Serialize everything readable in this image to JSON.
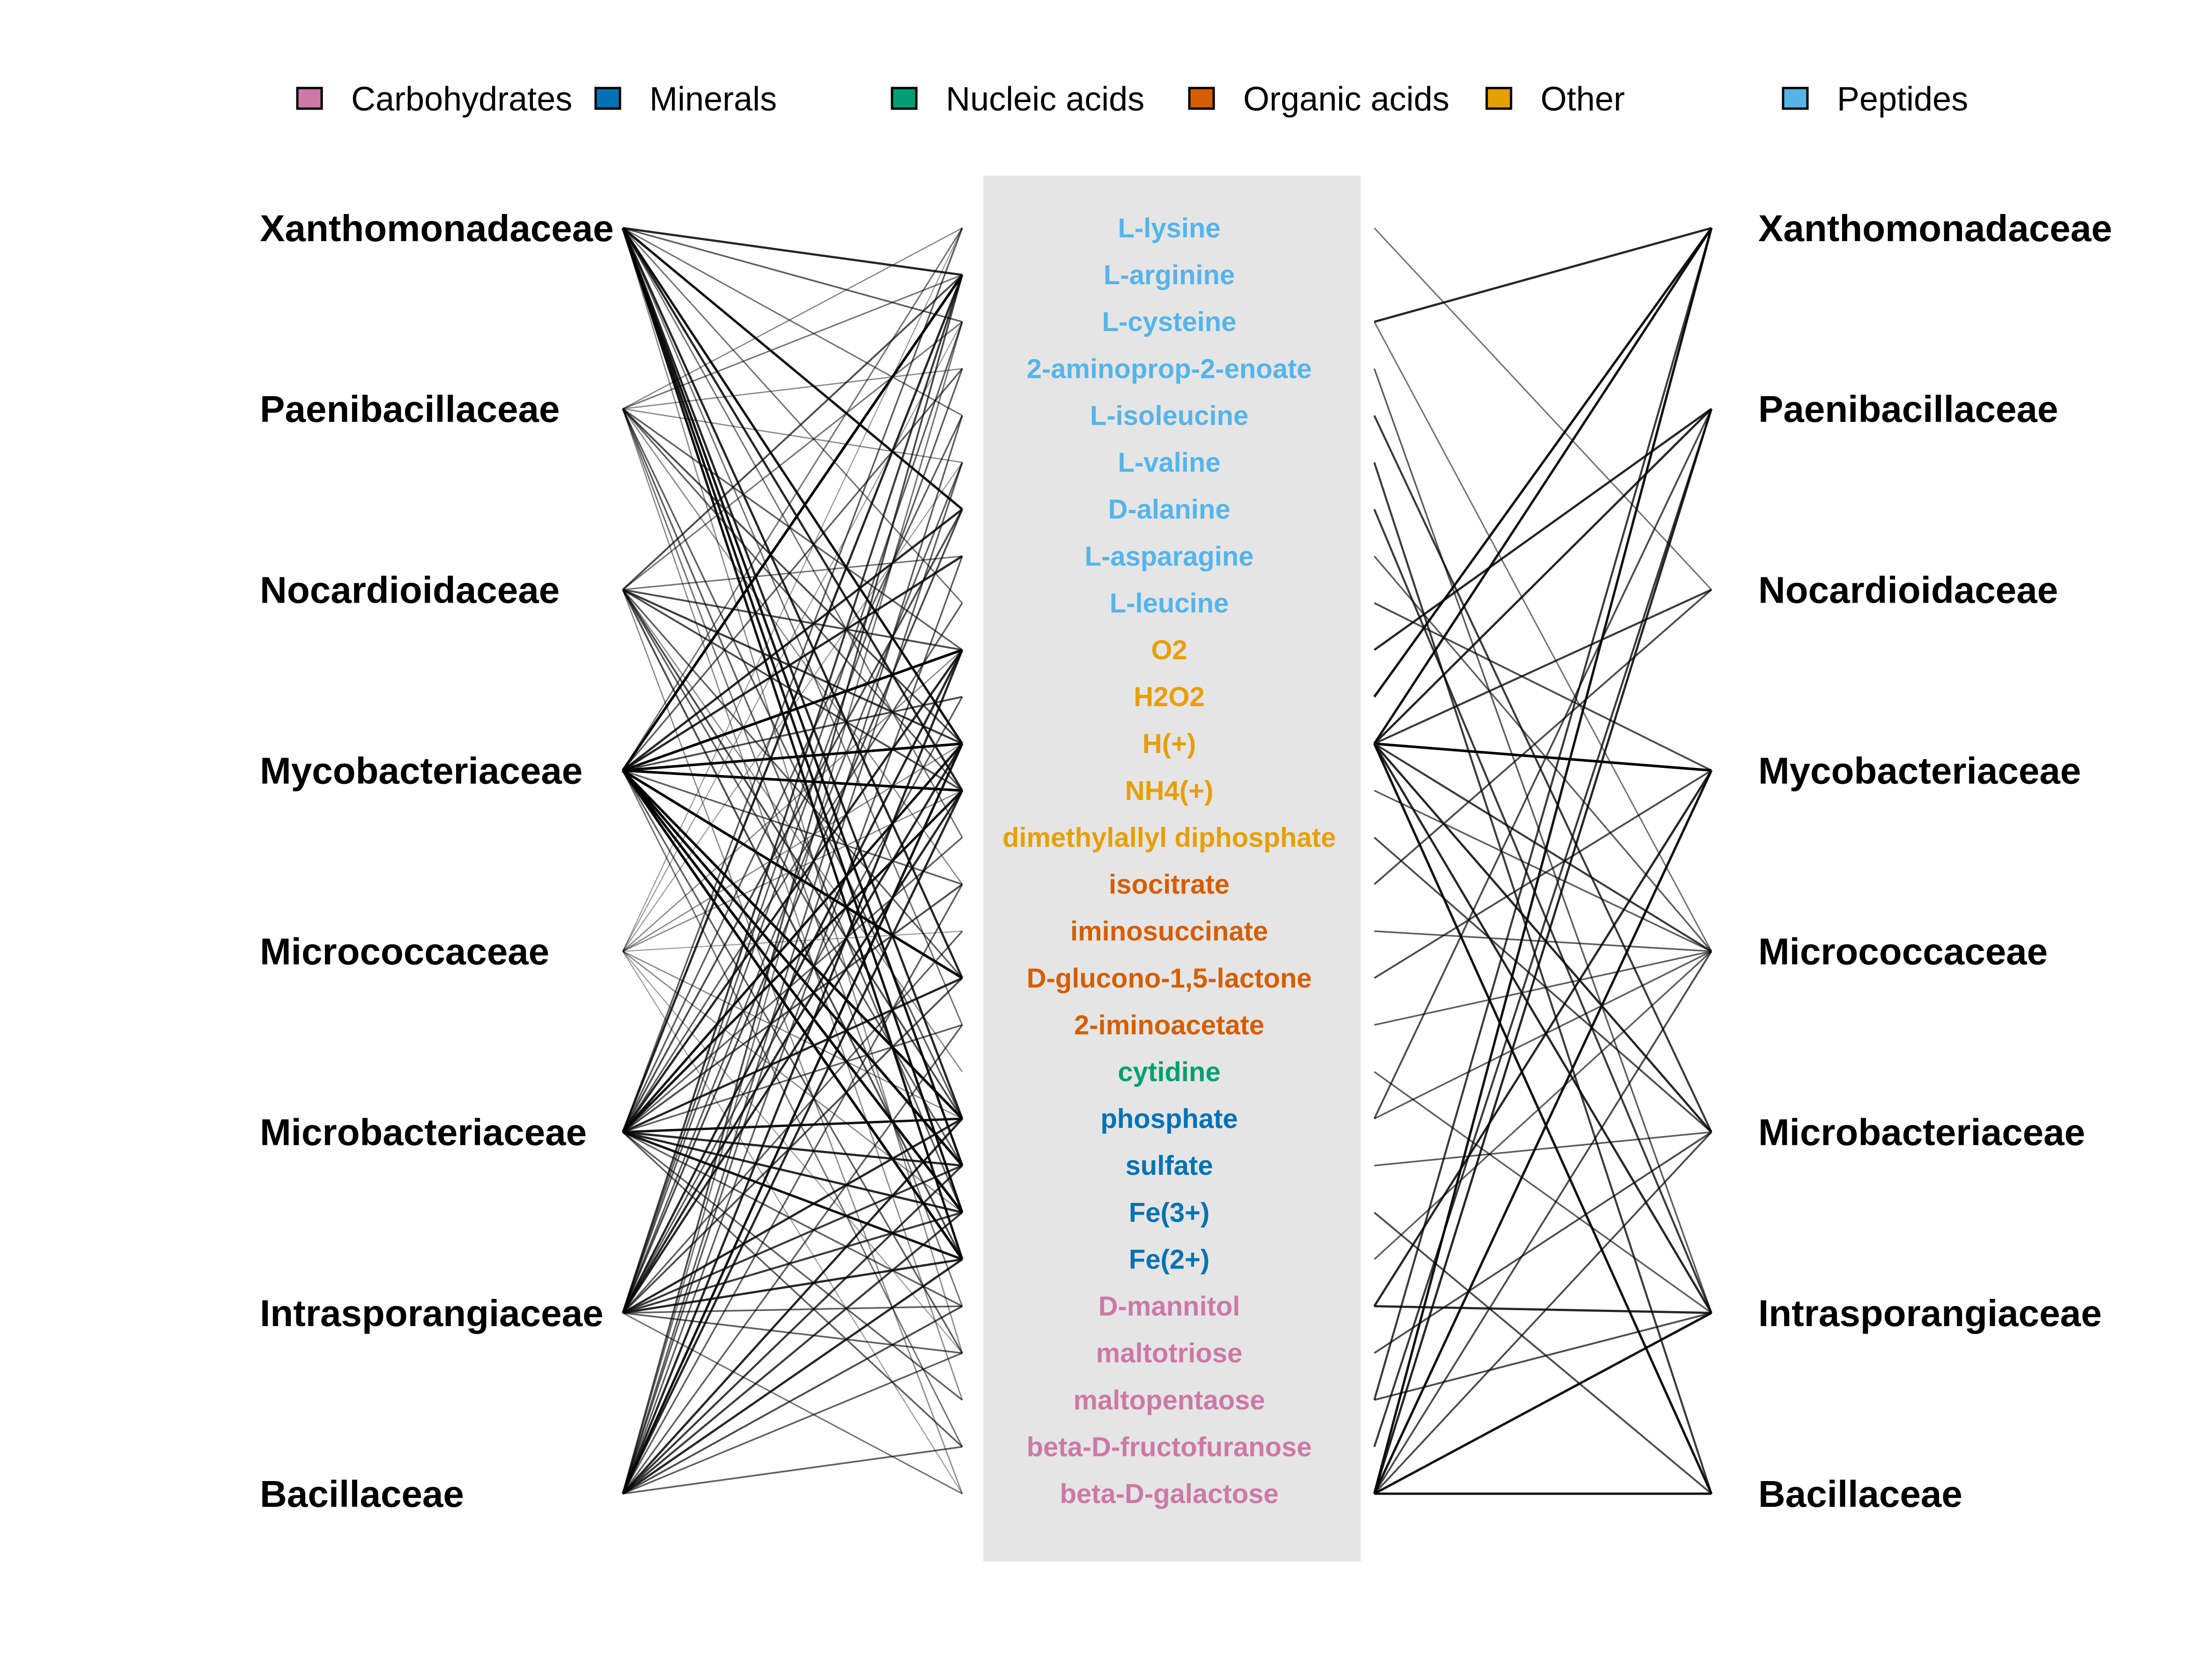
{
  "legend": {
    "items": [
      {
        "label": "Carbohydrates",
        "color": "#CC79A7"
      },
      {
        "label": "Minerals",
        "color": "#0072B2"
      },
      {
        "label": "Nucleic acids",
        "color": "#009E73"
      },
      {
        "label": "Organic acids",
        "color": "#D55E00"
      },
      {
        "label": "Other",
        "color": "#E69F00"
      },
      {
        "label": "Peptides",
        "color": "#56B4E9"
      }
    ]
  },
  "families": [
    "Xanthomonadaceae",
    "Paenibacillaceae",
    "Nocardioidaceae",
    "Mycobacteriaceae",
    "Micrococcaceae",
    "Microbacteriaceae",
    "Intrasporangiaceae",
    "Bacillaceae"
  ],
  "metabolites": [
    {
      "name": "L-lysine",
      "category": "Peptides"
    },
    {
      "name": "L-arginine",
      "category": "Peptides"
    },
    {
      "name": "L-cysteine",
      "category": "Peptides"
    },
    {
      "name": "2-aminoprop-2-enoate",
      "category": "Peptides"
    },
    {
      "name": "L-isoleucine",
      "category": "Peptides"
    },
    {
      "name": "L-valine",
      "category": "Peptides"
    },
    {
      "name": "D-alanine",
      "category": "Peptides"
    },
    {
      "name": "L-asparagine",
      "category": "Peptides"
    },
    {
      "name": "L-leucine",
      "category": "Peptides"
    },
    {
      "name": "O2",
      "category": "Other"
    },
    {
      "name": "H2O2",
      "category": "Other"
    },
    {
      "name": "H(+)",
      "category": "Other"
    },
    {
      "name": "NH4(+)",
      "category": "Other"
    },
    {
      "name": "dimethylallyl diphosphate",
      "category": "Other"
    },
    {
      "name": "isocitrate",
      "category": "Organic acids"
    },
    {
      "name": "iminosuccinate",
      "category": "Organic acids"
    },
    {
      "name": "D-glucono-1,5-lactone",
      "category": "Organic acids"
    },
    {
      "name": "2-iminoacetate",
      "category": "Organic acids"
    },
    {
      "name": "cytidine",
      "category": "Nucleic acids"
    },
    {
      "name": "phosphate",
      "category": "Minerals"
    },
    {
      "name": "sulfate",
      "category": "Minerals"
    },
    {
      "name": "Fe(3+)",
      "category": "Minerals"
    },
    {
      "name": "Fe(2+)",
      "category": "Minerals"
    },
    {
      "name": "D-mannitol",
      "category": "Carbohydrates"
    },
    {
      "name": "maltotriose",
      "category": "Carbohydrates"
    },
    {
      "name": "maltopentaose",
      "category": "Carbohydrates"
    },
    {
      "name": "beta-D-fructofuranose",
      "category": "Carbohydrates"
    },
    {
      "name": "beta-D-galactose",
      "category": "Carbohydrates"
    }
  ],
  "colors": {
    "center_panel": "#E5E5E5",
    "edge": "#000000"
  },
  "left_edges": [
    [
      "Xanthomonadaceae",
      "L-arginine",
      0.8
    ],
    [
      "Xanthomonadaceae",
      "L-cysteine",
      0.5
    ],
    [
      "Xanthomonadaceae",
      "L-isoleucine",
      0.4
    ],
    [
      "Xanthomonadaceae",
      "D-alanine",
      0.9
    ],
    [
      "Xanthomonadaceae",
      "L-leucine",
      0.4
    ],
    [
      "Xanthomonadaceae",
      "H(+)",
      0.9
    ],
    [
      "Xanthomonadaceae",
      "NH4(+)",
      0.8
    ],
    [
      "Xanthomonadaceae",
      "dimethylallyl diphosphate",
      0.4
    ],
    [
      "Xanthomonadaceae",
      "D-glucono-1,5-lactone",
      0.8
    ],
    [
      "Xanthomonadaceae",
      "2-iminoacetate",
      0.4
    ],
    [
      "Xanthomonadaceae",
      "phosphate",
      0.8
    ],
    [
      "Xanthomonadaceae",
      "sulfate",
      0.9
    ],
    [
      "Xanthomonadaceae",
      "Fe(3+)",
      0.9
    ],
    [
      "Xanthomonadaceae",
      "Fe(2+)",
      0.9
    ],
    [
      "Xanthomonadaceae",
      "maltotriose",
      0.3
    ],
    [
      "Paenibacillaceae",
      "L-lysine",
      0.3
    ],
    [
      "Paenibacillaceae",
      "L-arginine",
      0.4
    ],
    [
      "Paenibacillaceae",
      "2-aminoprop-2-enoate",
      0.3
    ],
    [
      "Paenibacillaceae",
      "L-valine",
      0.3
    ],
    [
      "Paenibacillaceae",
      "O2",
      0.5
    ],
    [
      "Paenibacillaceae",
      "H(+)",
      0.6
    ],
    [
      "Paenibacillaceae",
      "NH4(+)",
      0.5
    ],
    [
      "Paenibacillaceae",
      "isocitrate",
      0.3
    ],
    [
      "Paenibacillaceae",
      "phosphate",
      0.5
    ],
    [
      "Paenibacillaceae",
      "Fe(3+)",
      0.5
    ],
    [
      "Paenibacillaceae",
      "D-mannitol",
      0.4
    ],
    [
      "Paenibacillaceae",
      "maltopentaose",
      0.3
    ],
    [
      "Nocardioidaceae",
      "L-arginine",
      0.6
    ],
    [
      "Nocardioidaceae",
      "L-cysteine",
      0.4
    ],
    [
      "Nocardioidaceae",
      "L-asparagine",
      0.4
    ],
    [
      "Nocardioidaceae",
      "O2",
      0.6
    ],
    [
      "Nocardioidaceae",
      "H(+)",
      0.7
    ],
    [
      "Nocardioidaceae",
      "NH4(+)",
      0.6
    ],
    [
      "Nocardioidaceae",
      "D-glucono-1,5-lactone",
      0.5
    ],
    [
      "Nocardioidaceae",
      "cytidine",
      0.3
    ],
    [
      "Nocardioidaceae",
      "phosphate",
      0.6
    ],
    [
      "Nocardioidaceae",
      "sulfate",
      0.5
    ],
    [
      "Nocardioidaceae",
      "Fe(2+)",
      0.6
    ],
    [
      "Nocardioidaceae",
      "beta-D-galactose",
      0.3
    ],
    [
      "Mycobacteriaceae",
      "L-lysine",
      0.4
    ],
    [
      "Mycobacteriaceae",
      "L-arginine",
      1.0
    ],
    [
      "Mycobacteriaceae",
      "2-aminoprop-2-enoate",
      0.5
    ],
    [
      "Mycobacteriaceae",
      "D-alanine",
      0.8
    ],
    [
      "Mycobacteriaceae",
      "L-asparagine",
      0.8
    ],
    [
      "Mycobacteriaceae",
      "O2",
      1.0
    ],
    [
      "Mycobacteriaceae",
      "H2O2",
      0.6
    ],
    [
      "Mycobacteriaceae",
      "H(+)",
      1.0
    ],
    [
      "Mycobacteriaceae",
      "NH4(+)",
      1.0
    ],
    [
      "Mycobacteriaceae",
      "isocitrate",
      0.5
    ],
    [
      "Mycobacteriaceae",
      "D-glucono-1,5-lactone",
      1.0
    ],
    [
      "Mycobacteriaceae",
      "phosphate",
      1.0
    ],
    [
      "Mycobacteriaceae",
      "sulfate",
      1.0
    ],
    [
      "Mycobacteriaceae",
      "Fe(3+)",
      1.0
    ],
    [
      "Mycobacteriaceae",
      "Fe(2+)",
      1.0
    ],
    [
      "Mycobacteriaceae",
      "maltotriose",
      0.5
    ],
    [
      "Mycobacteriaceae",
      "beta-D-fructofuranose",
      0.4
    ],
    [
      "Micrococcaceae",
      "L-lysine",
      0.2
    ],
    [
      "Micrococcaceae",
      "L-cysteine",
      0.2
    ],
    [
      "Micrococcaceae",
      "L-valine",
      0.2
    ],
    [
      "Micrococcaceae",
      "O2",
      0.3
    ],
    [
      "Micrococcaceae",
      "H(+)",
      0.3
    ],
    [
      "Micrococcaceae",
      "NH4(+)",
      0.3
    ],
    [
      "Micrococcaceae",
      "iminosuccinate",
      0.2
    ],
    [
      "Micrococcaceae",
      "phosphate",
      0.3
    ],
    [
      "Micrococcaceae",
      "Fe(3+)",
      0.3
    ],
    [
      "Micrococcaceae",
      "maltotriose",
      0.2
    ],
    [
      "Micrococcaceae",
      "beta-D-galactose",
      0.2
    ],
    [
      "Microbacteriaceae",
      "L-lysine",
      0.5
    ],
    [
      "Microbacteriaceae",
      "L-arginine",
      0.8
    ],
    [
      "Microbacteriaceae",
      "L-isoleucine",
      0.5
    ],
    [
      "Microbacteriaceae",
      "D-alanine",
      0.6
    ],
    [
      "Microbacteriaceae",
      "L-leucine",
      0.5
    ],
    [
      "Microbacteriaceae",
      "O2",
      0.8
    ],
    [
      "Microbacteriaceae",
      "H(+)",
      0.9
    ],
    [
      "Microbacteriaceae",
      "NH4(+)",
      0.9
    ],
    [
      "Microbacteriaceae",
      "dimethylallyl diphosphate",
      0.5
    ],
    [
      "Microbacteriaceae",
      "isocitrate",
      0.6
    ],
    [
      "Microbacteriaceae",
      "D-glucono-1,5-lactone",
      0.8
    ],
    [
      "Microbacteriaceae",
      "2-iminoacetate",
      0.5
    ],
    [
      "Microbacteriaceae",
      "phosphate",
      0.9
    ],
    [
      "Microbacteriaceae",
      "sulfate",
      0.8
    ],
    [
      "Microbacteriaceae",
      "Fe(3+)",
      0.8
    ],
    [
      "Microbacteriaceae",
      "Fe(2+)",
      0.9
    ],
    [
      "Microbacteriaceae",
      "D-mannitol",
      0.5
    ],
    [
      "Microbacteriaceae",
      "maltopentaose",
      0.5
    ],
    [
      "Microbacteriaceae",
      "beta-D-fructofuranose",
      0.5
    ],
    [
      "Intrasporangiaceae",
      "L-arginine",
      0.7
    ],
    [
      "Intrasporangiaceae",
      "L-cysteine",
      0.5
    ],
    [
      "Intrasporangiaceae",
      "2-aminoprop-2-enoate",
      0.5
    ],
    [
      "Intrasporangiaceae",
      "L-valine",
      0.5
    ],
    [
      "Intrasporangiaceae",
      "D-alanine",
      0.6
    ],
    [
      "Intrasporangiaceae",
      "O2",
      0.8
    ],
    [
      "Intrasporangiaceae",
      "H2O2",
      0.5
    ],
    [
      "Intrasporangiaceae",
      "H(+)",
      0.8
    ],
    [
      "Intrasporangiaceae",
      "NH4(+)",
      0.8
    ],
    [
      "Intrasporangiaceae",
      "iminosuccinate",
      0.5
    ],
    [
      "Intrasporangiaceae",
      "D-glucono-1,5-lactone",
      0.6
    ],
    [
      "Intrasporangiaceae",
      "phosphate",
      0.8
    ],
    [
      "Intrasporangiaceae",
      "sulfate",
      0.7
    ],
    [
      "Intrasporangiaceae",
      "Fe(3+)",
      0.7
    ],
    [
      "Intrasporangiaceae",
      "Fe(2+)",
      0.8
    ],
    [
      "Intrasporangiaceae",
      "D-mannitol",
      0.5
    ],
    [
      "Intrasporangiaceae",
      "maltotriose",
      0.5
    ],
    [
      "Intrasporangiaceae",
      "beta-D-galactose",
      0.4
    ],
    [
      "Bacillaceae",
      "L-arginine",
      0.6
    ],
    [
      "Bacillaceae",
      "L-cysteine",
      0.4
    ],
    [
      "Bacillaceae",
      "L-isoleucine",
      0.5
    ],
    [
      "Bacillaceae",
      "L-valine",
      0.5
    ],
    [
      "Bacillaceae",
      "L-asparagine",
      0.5
    ],
    [
      "Bacillaceae",
      "O2",
      0.8
    ],
    [
      "Bacillaceae",
      "H(+)",
      0.9
    ],
    [
      "Bacillaceae",
      "NH4(+)",
      0.8
    ],
    [
      "Bacillaceae",
      "isocitrate",
      0.5
    ],
    [
      "Bacillaceae",
      "2-iminoacetate",
      0.5
    ],
    [
      "Bacillaceae",
      "phosphate",
      0.8
    ],
    [
      "Bacillaceae",
      "sulfate",
      0.7
    ],
    [
      "Bacillaceae",
      "Fe(3+)",
      0.7
    ],
    [
      "Bacillaceae",
      "Fe(2+)",
      0.8
    ],
    [
      "Bacillaceae",
      "D-mannitol",
      0.6
    ],
    [
      "Bacillaceae",
      "maltotriose",
      0.5
    ],
    [
      "Bacillaceae",
      "beta-D-fructofuranose",
      0.5
    ]
  ],
  "right_edges": [
    [
      "L-lysine",
      "Nocardioidaceae",
      0.4
    ],
    [
      "L-cysteine",
      "Xanthomonadaceae",
      0.8
    ],
    [
      "L-cysteine",
      "Micrococcaceae",
      0.4
    ],
    [
      "2-aminoprop-2-enoate",
      "Intrasporangiaceae",
      0.5
    ],
    [
      "L-isoleucine",
      "Microbacteriaceae",
      0.7
    ],
    [
      "L-valine",
      "Bacillaceae",
      0.7
    ],
    [
      "D-alanine",
      "Intrasporangiaceae",
      0.7
    ],
    [
      "L-asparagine",
      "Micrococcaceae",
      0.5
    ],
    [
      "L-leucine",
      "Mycobacteriaceae",
      0.6
    ],
    [
      "O2",
      "Paenibacillaceae",
      0.8
    ],
    [
      "H2O2",
      "Xanthomonadaceae",
      0.9
    ],
    [
      "H(+)",
      "Xanthomonadaceae",
      0.9
    ],
    [
      "H(+)",
      "Paenibacillaceae",
      0.8
    ],
    [
      "H(+)",
      "Nocardioidaceae",
      0.7
    ],
    [
      "H(+)",
      "Mycobacteriaceae",
      1.0
    ],
    [
      "H(+)",
      "Micrococcaceae",
      0.7
    ],
    [
      "H(+)",
      "Microbacteriaceae",
      0.8
    ],
    [
      "H(+)",
      "Intrasporangiaceae",
      0.8
    ],
    [
      "H(+)",
      "Bacillaceae",
      0.9
    ],
    [
      "NH4(+)",
      "Micrococcaceae",
      0.5
    ],
    [
      "dimethylallyl diphosphate",
      "Microbacteriaceae",
      0.6
    ],
    [
      "isocitrate",
      "Nocardioidaceae",
      0.6
    ],
    [
      "iminosuccinate",
      "Micrococcaceae",
      0.5
    ],
    [
      "D-glucono-1,5-lactone",
      "Mycobacteriaceae",
      0.6
    ],
    [
      "2-iminoacetate",
      "Micrococcaceae",
      0.5
    ],
    [
      "cytidine",
      "Intrasporangiaceae",
      0.5
    ],
    [
      "phosphate",
      "Paenibacillaceae",
      0.6
    ],
    [
      "phosphate",
      "Micrococcaceae",
      0.5
    ],
    [
      "sulfate",
      "Microbacteriaceae",
      0.5
    ],
    [
      "Fe(3+)",
      "Bacillaceae",
      0.6
    ],
    [
      "Fe(2+)",
      "Micrococcaceae",
      0.5
    ],
    [
      "D-mannitol",
      "Mycobacteriaceae",
      0.8
    ],
    [
      "D-mannitol",
      "Intrasporangiaceae",
      0.8
    ],
    [
      "maltotriose",
      "Microbacteriaceae",
      0.6
    ],
    [
      "maltopentaose",
      "Xanthomonadaceae",
      0.7
    ],
    [
      "maltopentaose",
      "Intrasporangiaceae",
      0.6
    ],
    [
      "beta-D-fructofuranose",
      "Paenibacillaceae",
      0.7
    ],
    [
      "beta-D-galactose",
      "Xanthomonadaceae",
      0.9
    ],
    [
      "beta-D-galactose",
      "Paenibacillaceae",
      0.8
    ],
    [
      "beta-D-galactose",
      "Mycobacteriaceae",
      0.9
    ],
    [
      "beta-D-galactose",
      "Micrococcaceae",
      0.6
    ],
    [
      "beta-D-galactose",
      "Microbacteriaceae",
      0.6
    ],
    [
      "beta-D-galactose",
      "Intrasporangiaceae",
      0.9
    ],
    [
      "beta-D-galactose",
      "Bacillaceae",
      0.9
    ]
  ]
}
